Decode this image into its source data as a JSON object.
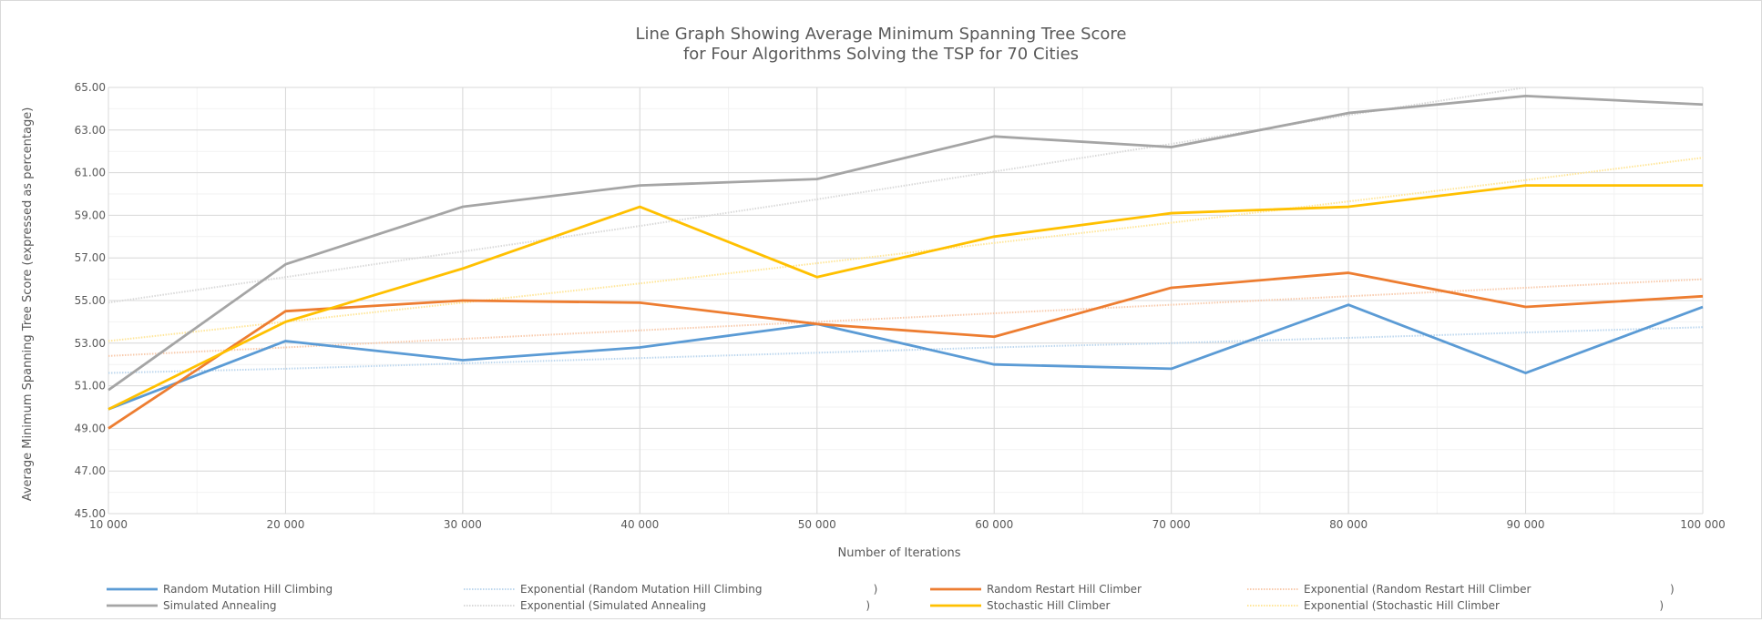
{
  "chart_data": {
    "type": "line",
    "title": [
      "Line Graph Showing Average Minimum Spanning Tree Score",
      "for Four Algorithms Solving the TSP for 70 Cities"
    ],
    "xlabel": "Number of Iterations",
    "ylabel": "Average Minimum Spanning Tree Score (expressed as percentage)",
    "x": [
      10000,
      20000,
      30000,
      40000,
      50000,
      60000,
      70000,
      80000,
      90000,
      100000
    ],
    "x_tick_labels": [
      "10 000",
      "20 000",
      "30 000",
      "40 000",
      "50 000",
      "60 000",
      "70 000",
      "80 000",
      "90 000",
      "100 000"
    ],
    "ylim": [
      45,
      65
    ],
    "y_ticks": [
      45,
      47,
      49,
      51,
      53,
      55,
      57,
      59,
      61,
      63,
      65
    ],
    "y_tick_labels": [
      "45.00",
      "47.00",
      "49.00",
      "51.00",
      "53.00",
      "55.00",
      "57.00",
      "59.00",
      "61.00",
      "63.00",
      "65.00"
    ],
    "grid": true,
    "legend_position": "bottom",
    "series": [
      {
        "name": "Random Mutation Hill Climbing",
        "color": "#5b9bd5",
        "values": [
          49.9,
          53.1,
          52.2,
          52.8,
          53.9,
          52.0,
          51.8,
          54.8,
          51.6,
          54.7
        ]
      },
      {
        "name": "Random Restart Hill Climber",
        "color": "#ed7d31",
        "values": [
          49.0,
          54.5,
          55.0,
          54.9,
          53.9,
          53.3,
          55.6,
          56.3,
          54.7,
          55.2
        ]
      },
      {
        "name": "Simulated Annealing",
        "color": "#a5a5a5",
        "values": [
          50.8,
          56.7,
          59.4,
          60.4,
          60.7,
          62.7,
          62.2,
          63.8,
          64.6,
          64.2
        ]
      },
      {
        "name": "Stochastic Hill Climber",
        "color": "#ffc000",
        "values": [
          49.9,
          54.0,
          56.5,
          59.4,
          56.1,
          58.0,
          59.1,
          59.4,
          60.4,
          60.4
        ]
      }
    ],
    "trendlines": [
      {
        "name": "Exponential (Random Mutation Hill Climbing                                )",
        "color": "#bdd7ee",
        "type": "exponential",
        "values": [
          51.6,
          51.8,
          52.05,
          52.3,
          52.55,
          52.8,
          53.0,
          53.25,
          53.5,
          53.75
        ]
      },
      {
        "name": "Exponential (Random Restart Hill Climber                                        )",
        "color": "#f8cbad",
        "type": "exponential",
        "values": [
          52.4,
          52.8,
          53.2,
          53.6,
          54.0,
          54.4,
          54.8,
          55.2,
          55.6,
          56.0
        ]
      },
      {
        "name": "Exponential (Simulated Annealing                                              )",
        "color": "#d9d9d9",
        "type": "exponential",
        "values": [
          54.9,
          56.1,
          57.3,
          58.5,
          59.75,
          61.05,
          62.35,
          63.7,
          65.0,
          66.4
        ]
      },
      {
        "name": "Exponential (Stochastic Hill Climber                                              )",
        "color": "#ffe699",
        "type": "exponential",
        "values": [
          53.1,
          54.0,
          54.9,
          55.8,
          56.75,
          57.7,
          58.65,
          59.65,
          60.65,
          61.7
        ]
      }
    ],
    "legend": [
      {
        "label": "Random Mutation Hill Climbing",
        "color": "#5b9bd5",
        "kind": "series"
      },
      {
        "label": "Exponential (Random Mutation Hill Climbing                                )",
        "color": "#bdd7ee",
        "kind": "trend"
      },
      {
        "label": "Random Restart Hill Climber",
        "color": "#ed7d31",
        "kind": "series"
      },
      {
        "label": "Exponential (Random Restart Hill Climber                                        )",
        "color": "#f8cbad",
        "kind": "trend"
      },
      {
        "label": "Simulated Annealing",
        "color": "#a5a5a5",
        "kind": "series"
      },
      {
        "label": "Exponential (Simulated Annealing                                              )",
        "color": "#d9d9d9",
        "kind": "trend"
      },
      {
        "label": "Stochastic Hill Climber",
        "color": "#ffc000",
        "kind": "series"
      },
      {
        "label": "Exponential (Stochastic Hill Climber                                              )",
        "color": "#ffe699",
        "kind": "trend"
      }
    ]
  }
}
